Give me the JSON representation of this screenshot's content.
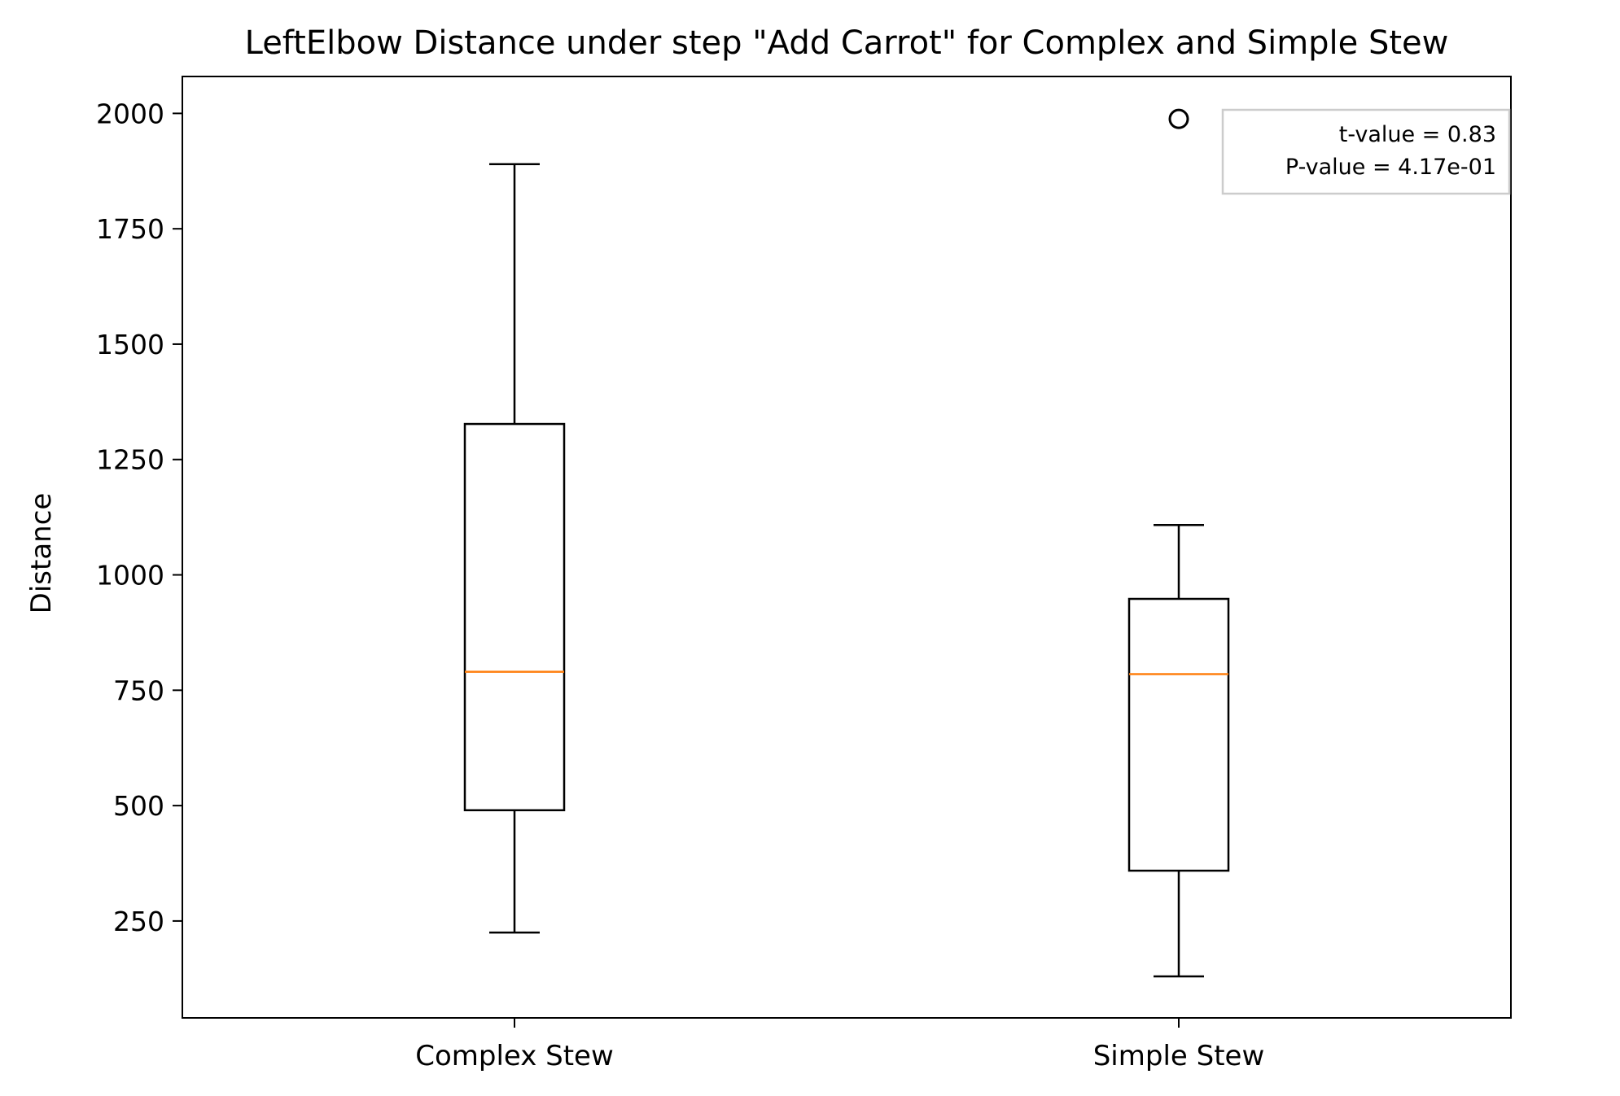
{
  "chart_data": {
    "type": "box",
    "title": "LeftElbow Distance under step \"Add Carrot\" for Complex and Simple Stew",
    "xlabel": "",
    "ylabel": "Distance",
    "ylim": [
      40,
      2080
    ],
    "yticks": [
      250,
      500,
      750,
      1000,
      1250,
      1500,
      1750,
      2000
    ],
    "categories": [
      "Complex Stew",
      "Simple Stew"
    ],
    "boxes": [
      {
        "category": "Complex Stew",
        "whisker_low": 225,
        "q1": 490,
        "median": 790,
        "q3": 1327,
        "whisker_high": 1890,
        "outliers": []
      },
      {
        "category": "Simple Stew",
        "whisker_low": 130,
        "q1": 359,
        "median": 785,
        "q3": 948,
        "whisker_high": 1108,
        "outliers": [
          1988
        ]
      }
    ],
    "annotation": {
      "lines": [
        "t-value = 0.83",
        "P-value = 4.17e-01"
      ]
    },
    "colors": {
      "box": "#000000",
      "median": "#ff7f0e",
      "annotation_border": "#cccccc"
    }
  }
}
